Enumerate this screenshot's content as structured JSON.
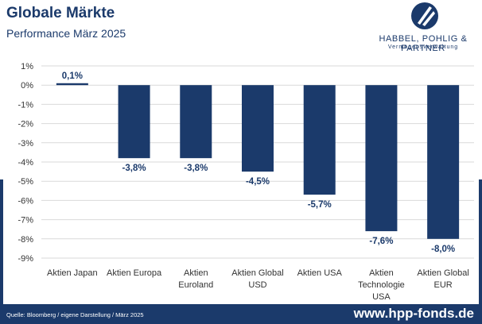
{
  "header": {
    "title": "Globale Märkte",
    "subtitle": "Performance März 2025"
  },
  "logo": {
    "name": "HABBEL, POHLIG & PARTNER",
    "tagline": "Vermögensverwaltung"
  },
  "footer": {
    "source": "Quelle: Bloomberg / eigene Darstellung / März 2025",
    "website": "www.hpp-fonds.de"
  },
  "colors": {
    "bar": "#1b3a6b",
    "label": "#1b3a6b",
    "grid": "#d9d9d9",
    "tick": "#333333"
  },
  "chart_data": {
    "type": "bar",
    "categories": [
      "Aktien Japan",
      "Aktien Europa",
      "Aktien Euroland",
      "Aktien Global USD",
      "Aktien USA",
      "Aktien Technologie USA",
      "Aktien Global EUR"
    ],
    "category_lines": [
      [
        "Aktien Japan"
      ],
      [
        "Aktien Europa"
      ],
      [
        "Aktien",
        "Euroland"
      ],
      [
        "Aktien Global",
        "USD"
      ],
      [
        "Aktien USA"
      ],
      [
        "Aktien",
        "Technologie",
        "USA"
      ],
      [
        "Aktien Global",
        "EUR"
      ]
    ],
    "values": [
      0.1,
      -3.8,
      -3.8,
      -4.5,
      -5.7,
      -7.6,
      -8.0
    ],
    "data_labels": [
      "0,1%",
      "-3,8%",
      "-3,8%",
      "-4,5%",
      "-5,7%",
      "-7,6%",
      "-8,0%"
    ],
    "yticks": [
      1,
      0,
      -1,
      -2,
      -3,
      -4,
      -5,
      -6,
      -7,
      -8,
      -9
    ],
    "ytick_labels": [
      "1%",
      "0%",
      "-1%",
      "-2%",
      "-3%",
      "-4%",
      "-5%",
      "-6%",
      "-7%",
      "-8%",
      "-9%"
    ],
    "ylim": [
      -9,
      1
    ],
    "grid": true,
    "legend": "none"
  }
}
